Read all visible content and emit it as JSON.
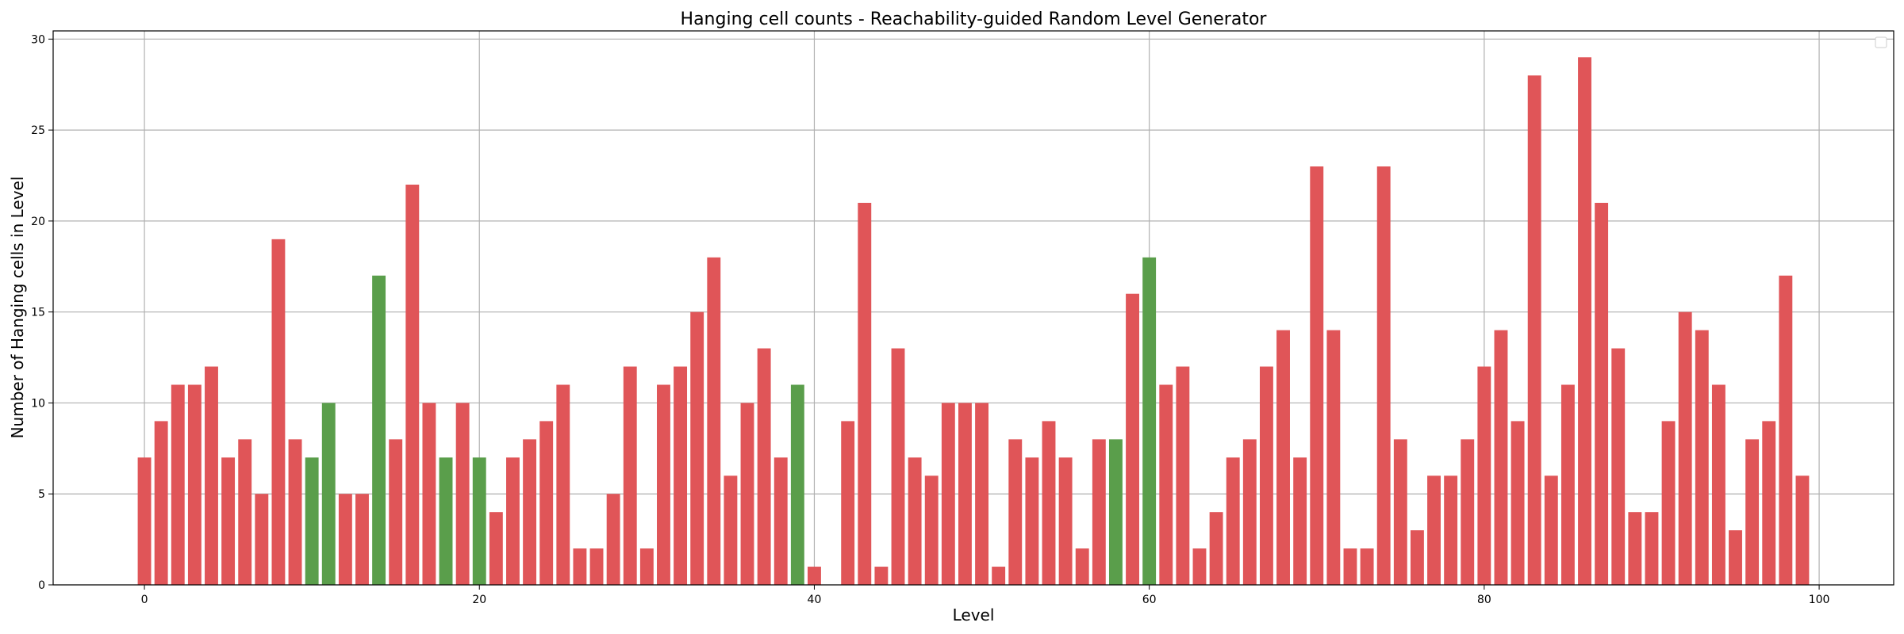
{
  "chart_data": {
    "type": "bar",
    "title": "Hanging cell counts - Reachability-guided Random Level Generator",
    "xlabel": "Level",
    "ylabel": "Number of Hanging cells in Level",
    "xlim": [
      -5.45,
      104.45
    ],
    "ylim": [
      0,
      30.45
    ],
    "grid": true,
    "legend": "top-right",
    "colors": {
      "red": "#e05558",
      "green": "#5a9e4b"
    },
    "x_ticks": [
      0,
      20,
      40,
      60,
      80,
      100
    ],
    "x_tick_labels": [
      "0",
      "20",
      "40",
      "60",
      "80",
      "100"
    ],
    "y_ticks": [
      0,
      5,
      10,
      15,
      20,
      25,
      30
    ],
    "y_tick_labels": [
      "0",
      "5",
      "10",
      "15",
      "20",
      "25",
      "30"
    ],
    "x": [
      0,
      1,
      2,
      3,
      4,
      5,
      6,
      7,
      8,
      9,
      10,
      11,
      12,
      13,
      14,
      15,
      16,
      17,
      18,
      19,
      20,
      21,
      22,
      23,
      24,
      25,
      26,
      27,
      28,
      29,
      30,
      31,
      32,
      33,
      34,
      35,
      36,
      37,
      38,
      39,
      40,
      41,
      42,
      43,
      44,
      45,
      46,
      47,
      48,
      49,
      50,
      51,
      52,
      53,
      54,
      55,
      56,
      57,
      58,
      59,
      60,
      61,
      62,
      63,
      64,
      65,
      66,
      67,
      68,
      69,
      70,
      71,
      72,
      73,
      74,
      75,
      76,
      77,
      78,
      79,
      80,
      81,
      82,
      83,
      84,
      85,
      86,
      87,
      88,
      89,
      90,
      91,
      92,
      93,
      94,
      95,
      96,
      97,
      98,
      99
    ],
    "values": [
      7,
      9,
      11,
      11,
      12,
      7,
      8,
      5,
      19,
      8,
      7,
      10,
      5,
      5,
      17,
      8,
      22,
      10,
      7,
      10,
      7,
      4,
      7,
      8,
      9,
      11,
      2,
      2,
      5,
      12,
      2,
      11,
      12,
      15,
      18,
      6,
      10,
      13,
      7,
      11,
      1,
      0,
      9,
      21,
      1,
      13,
      7,
      6,
      10,
      10,
      10,
      1,
      8,
      7,
      9,
      7,
      2,
      8,
      8,
      16,
      18,
      11,
      12,
      2,
      4,
      7,
      8,
      12,
      14,
      7,
      23,
      14,
      2,
      2,
      23,
      8,
      3,
      6,
      6,
      8,
      12,
      14,
      9,
      28,
      6,
      11,
      29,
      21,
      13,
      4,
      4,
      9,
      15,
      14,
      11,
      3,
      8,
      9,
      17,
      6
    ],
    "bar_colors": [
      "red",
      "red",
      "red",
      "red",
      "red",
      "red",
      "red",
      "red",
      "red",
      "red",
      "green",
      "green",
      "red",
      "red",
      "green",
      "red",
      "red",
      "red",
      "green",
      "red",
      "green",
      "red",
      "red",
      "red",
      "red",
      "red",
      "red",
      "red",
      "red",
      "red",
      "red",
      "red",
      "red",
      "red",
      "red",
      "red",
      "red",
      "red",
      "red",
      "green",
      "red",
      "red",
      "red",
      "red",
      "red",
      "red",
      "red",
      "red",
      "red",
      "red",
      "red",
      "red",
      "red",
      "red",
      "red",
      "red",
      "red",
      "red",
      "green",
      "red",
      "green",
      "red",
      "red",
      "red",
      "red",
      "red",
      "red",
      "red",
      "red",
      "red",
      "red",
      "red",
      "red",
      "red",
      "red",
      "red",
      "red",
      "red",
      "red",
      "red",
      "red",
      "red",
      "red",
      "red",
      "red",
      "red",
      "red",
      "red",
      "red",
      "red",
      "red",
      "red",
      "red",
      "red",
      "red",
      "red",
      "red",
      "red",
      "red",
      "red"
    ]
  }
}
